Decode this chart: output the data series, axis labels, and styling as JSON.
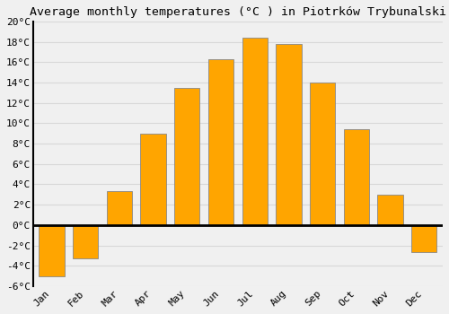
{
  "title": "Average monthly temperatures (°C ) in Piotrków Trybunalski",
  "months": [
    "Jan",
    "Feb",
    "Mar",
    "Apr",
    "May",
    "Jun",
    "Jul",
    "Aug",
    "Sep",
    "Oct",
    "Nov",
    "Dec"
  ],
  "values": [
    -5.0,
    -3.3,
    3.3,
    9.0,
    13.5,
    16.3,
    18.4,
    17.8,
    14.0,
    9.4,
    3.0,
    -2.7
  ],
  "bar_color": "#FFA500",
  "bar_edge_color": "#888888",
  "background_color": "#f0f0f0",
  "grid_color": "#d8d8d8",
  "zero_line_color": "#000000",
  "ylim": [
    -6,
    20
  ],
  "yticks": [
    -6,
    -4,
    -2,
    0,
    2,
    4,
    6,
    8,
    10,
    12,
    14,
    16,
    18,
    20
  ],
  "ytick_labels": [
    "-6°C",
    "-4°C",
    "-2°C",
    "0°C",
    "2°C",
    "4°C",
    "6°C",
    "8°C",
    "10°C",
    "12°C",
    "14°C",
    "16°C",
    "18°C",
    "20°C"
  ],
  "title_fontsize": 9.5,
  "tick_fontsize": 8,
  "bar_width": 0.75
}
